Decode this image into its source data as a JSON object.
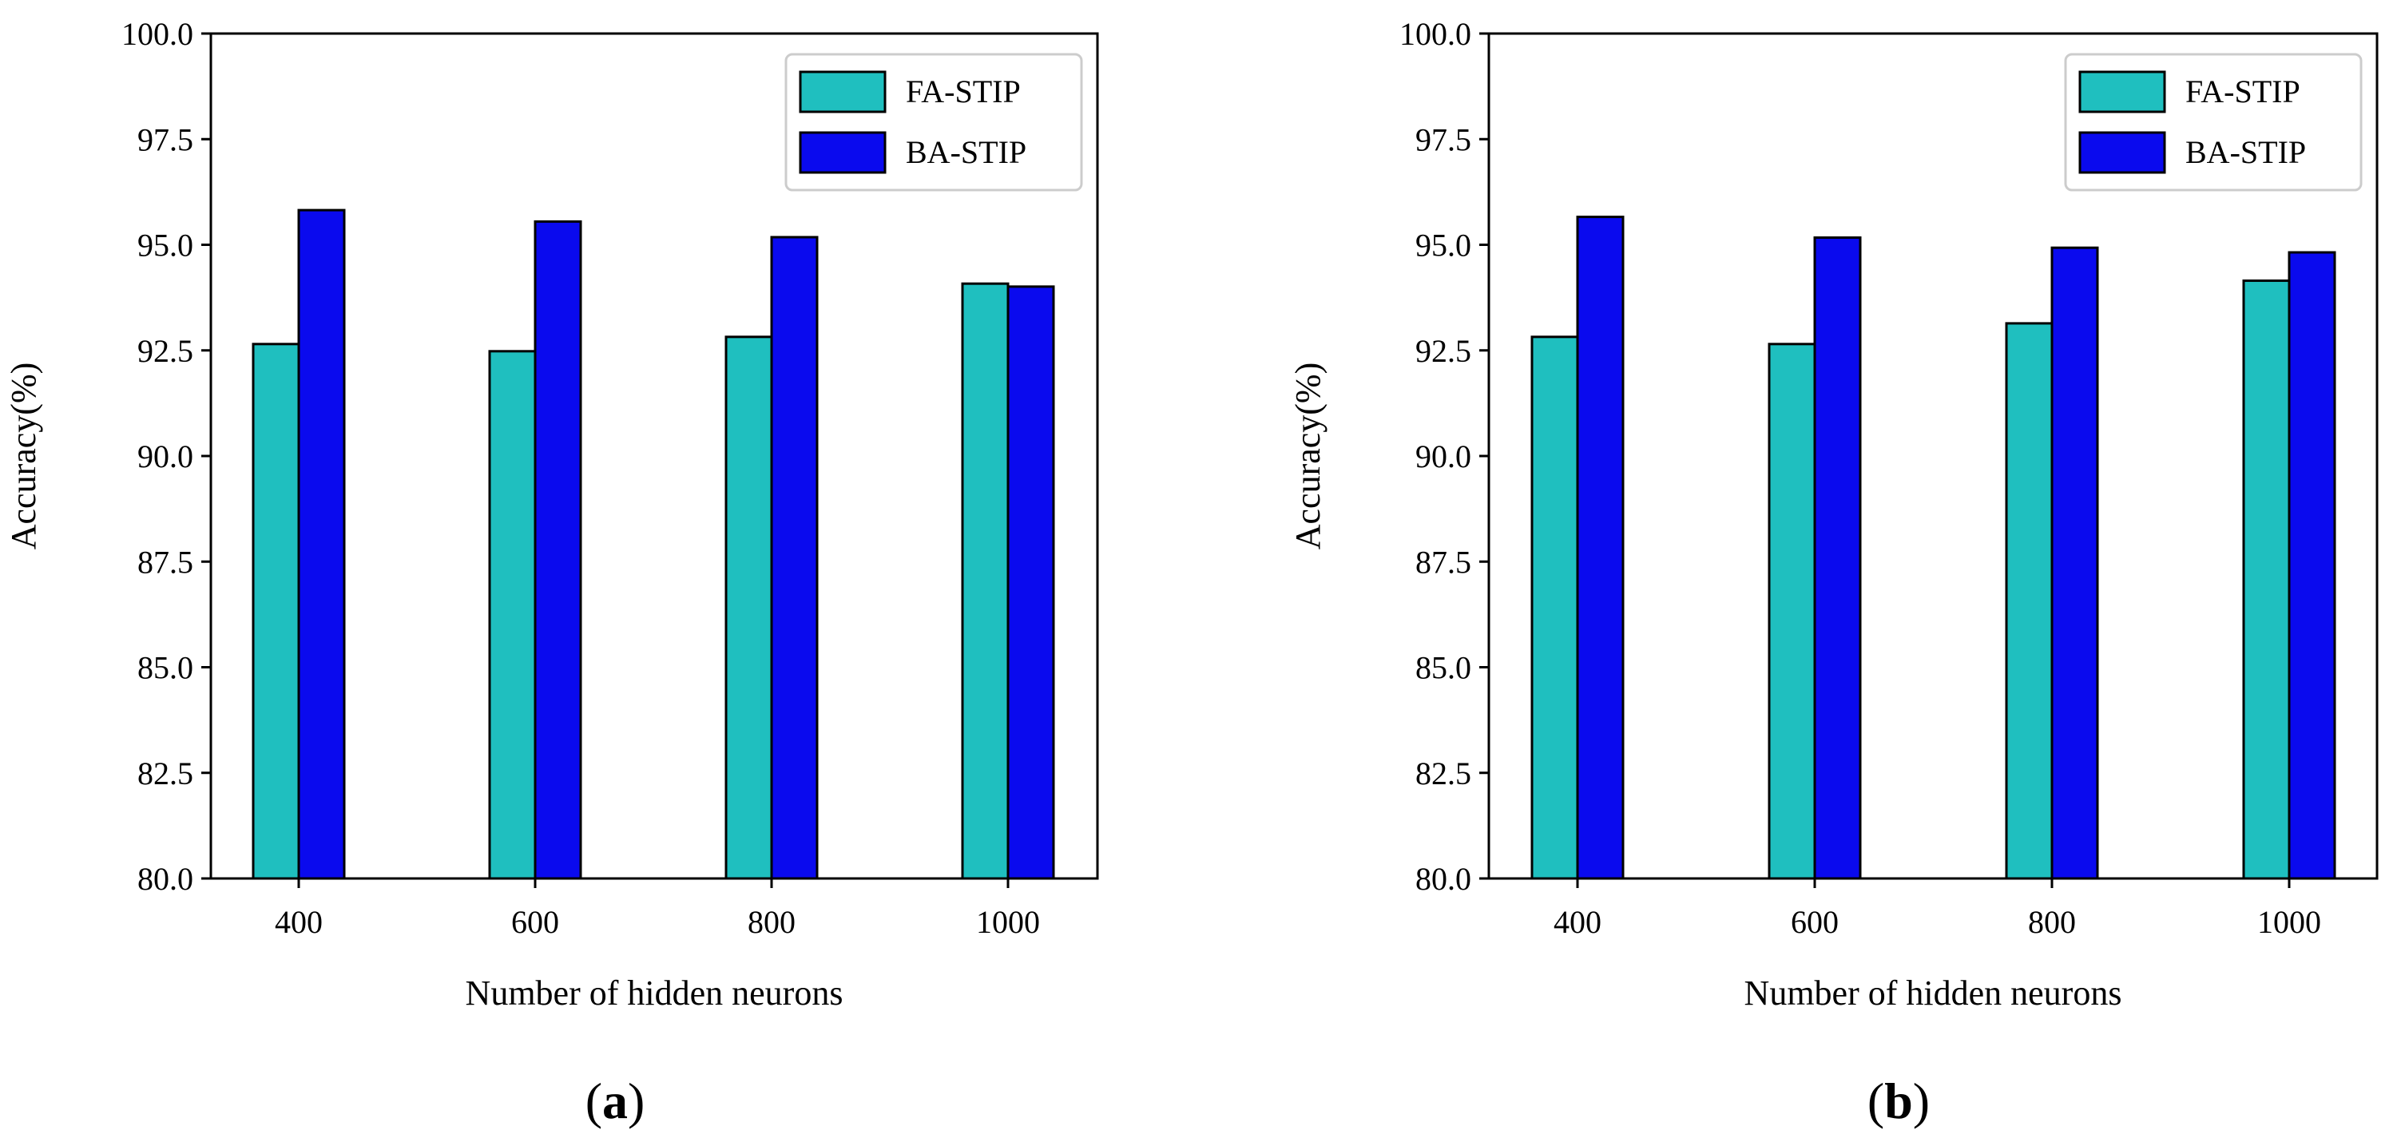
{
  "chart_data": [
    {
      "panel_label": "a",
      "type": "bar",
      "categories": [
        "400",
        "600",
        "800",
        "1000"
      ],
      "series": [
        {
          "name": "FA-STIP",
          "color": "#1fbfbf",
          "values": [
            92.65,
            92.48,
            92.82,
            94.08
          ]
        },
        {
          "name": "BA-STIP",
          "color": "#0a0aee",
          "values": [
            95.82,
            95.55,
            95.18,
            94.01
          ]
        }
      ],
      "title": "",
      "xlabel": "Number of hidden neurons",
      "ylabel": "Accuracy(%)",
      "ylim": [
        80.0,
        100.0
      ],
      "yticks": [
        "80.0",
        "82.5",
        "85.0",
        "87.5",
        "90.0",
        "92.5",
        "95.0",
        "97.5",
        "100.0"
      ],
      "grid": false,
      "legend": "top-right"
    },
    {
      "panel_label": "b",
      "type": "bar",
      "categories": [
        "400",
        "600",
        "800",
        "1000"
      ],
      "series": [
        {
          "name": "FA-STIP",
          "color": "#1fbfbf",
          "values": [
            92.82,
            92.65,
            93.14,
            94.15
          ]
        },
        {
          "name": "BA-STIP",
          "color": "#0a0aee",
          "values": [
            95.66,
            95.17,
            94.93,
            94.82
          ]
        }
      ],
      "title": "",
      "xlabel": "Number of hidden neurons",
      "ylabel": "Accuracy(%)",
      "ylim": [
        80.0,
        100.0
      ],
      "yticks": [
        "80.0",
        "82.5",
        "85.0",
        "87.5",
        "90.0",
        "92.5",
        "95.0",
        "97.5",
        "100.0"
      ],
      "grid": false,
      "legend": "top-right"
    }
  ]
}
